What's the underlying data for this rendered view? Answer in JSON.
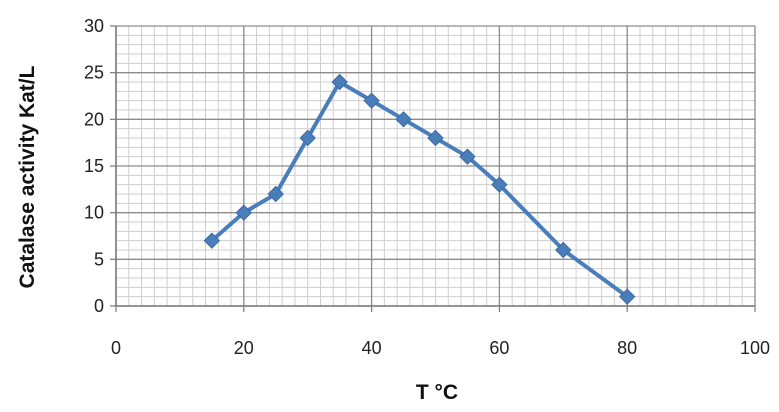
{
  "chart_data": {
    "type": "line",
    "xlabel": "T °C",
    "ylabel": "Catalase activity Kat/L",
    "xlim": [
      0,
      100
    ],
    "ylim": [
      0,
      30
    ],
    "x_ticks": [
      0,
      20,
      40,
      60,
      80,
      100
    ],
    "y_ticks": [
      0,
      5,
      10,
      15,
      20,
      25,
      30
    ],
    "grid": true,
    "series": [
      {
        "x": [
          15,
          20,
          25,
          30,
          35,
          40,
          45,
          50,
          55,
          60,
          70,
          80
        ],
        "y": [
          7,
          10,
          12,
          18,
          24,
          22,
          20,
          18,
          16,
          13,
          6,
          1
        ]
      }
    ],
    "colors": {
      "series": "#4a7ebb",
      "marker": "#4a7ebb",
      "major_grid": "#8c8c8c",
      "minor_grid": "#cfcfcf"
    },
    "marker": "diamond"
  }
}
